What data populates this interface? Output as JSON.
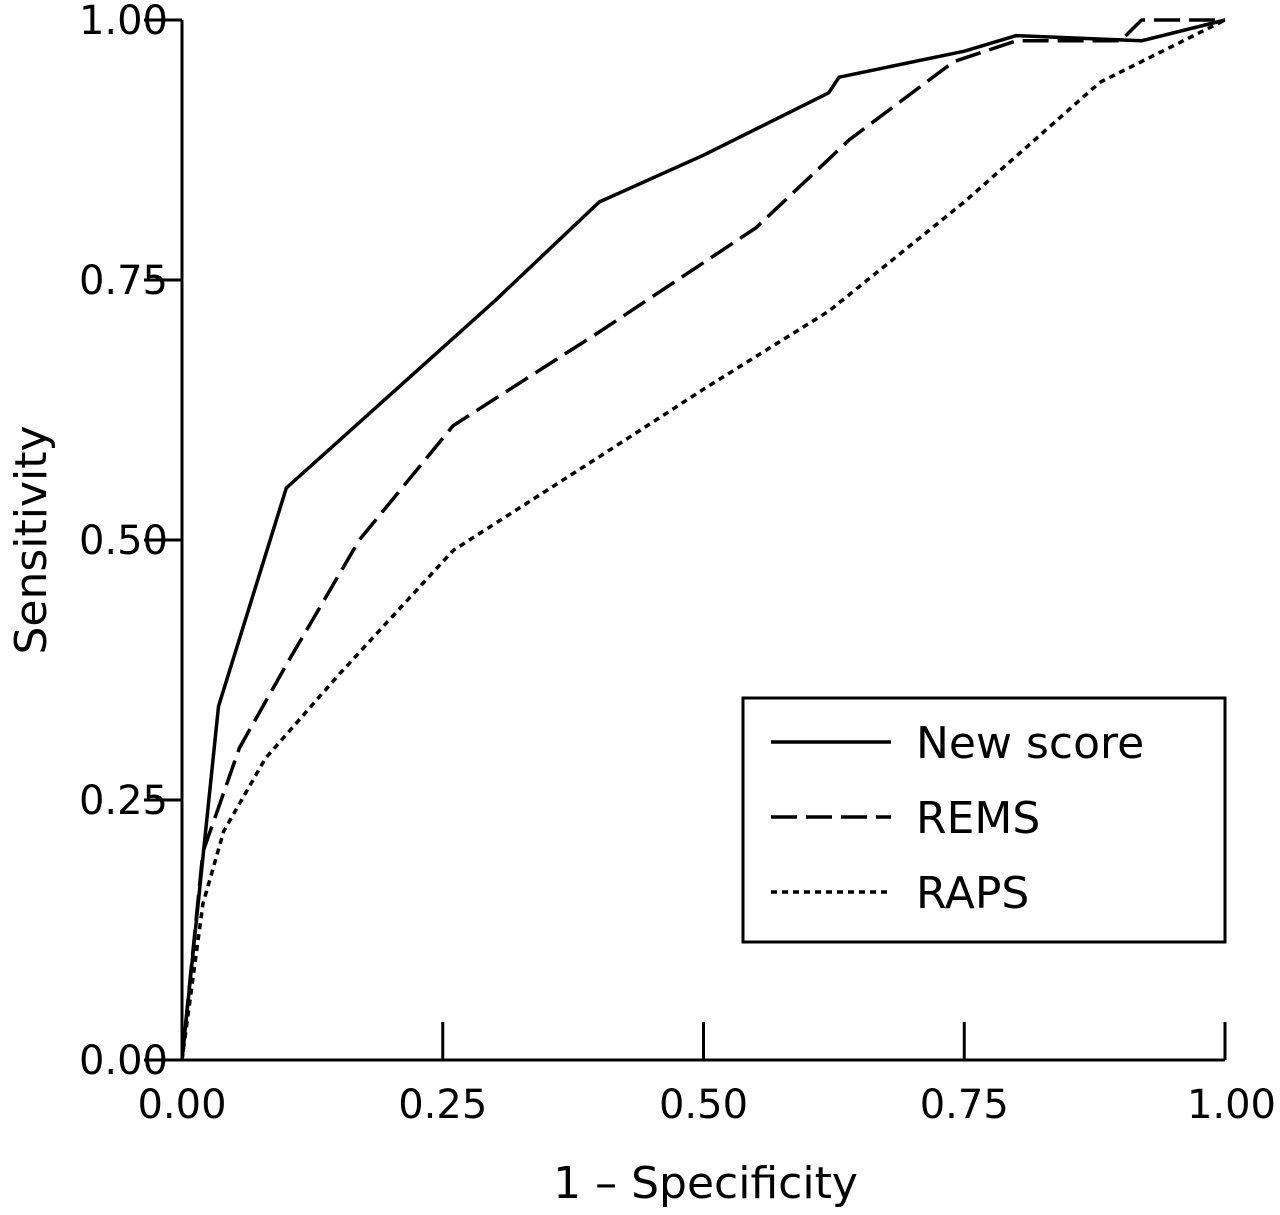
{
  "chart_data": {
    "type": "line",
    "xlabel": "1 – Specificity",
    "ylabel": "Sensitivity",
    "xlim": [
      0,
      1
    ],
    "ylim": [
      0,
      1
    ],
    "xticks": [
      "0.00",
      "0.25",
      "0.50",
      "0.75",
      "1.00"
    ],
    "yticks": [
      "0.00",
      "0.25",
      "0.50",
      "0.75",
      "1.00"
    ],
    "grid": false,
    "legend_position": "bottom-right",
    "series": [
      {
        "name": "New score",
        "style": "solid",
        "x": [
          0,
          0.035,
          0.1,
          0.2,
          0.3,
          0.4,
          0.5,
          0.62,
          0.63,
          0.75,
          0.8,
          0.92,
          1.0
        ],
        "y": [
          0,
          0.34,
          0.55,
          0.64,
          0.73,
          0.825,
          0.87,
          0.93,
          0.945,
          0.97,
          0.985,
          0.98,
          1.0
        ]
      },
      {
        "name": "REMS",
        "style": "dashed",
        "x": [
          0,
          0.02,
          0.055,
          0.1,
          0.17,
          0.26,
          0.4,
          0.55,
          0.64,
          0.74,
          0.8,
          0.9,
          0.92,
          1.0
        ],
        "y": [
          0,
          0.2,
          0.3,
          0.38,
          0.5,
          0.61,
          0.7,
          0.8,
          0.885,
          0.96,
          0.98,
          0.98,
          1.0,
          1.0
        ]
      },
      {
        "name": "RAPS",
        "style": "dotted",
        "x": [
          0,
          0.02,
          0.04,
          0.08,
          0.15,
          0.26,
          0.4,
          0.5,
          0.62,
          0.75,
          0.88,
          1.0
        ],
        "y": [
          0,
          0.15,
          0.22,
          0.29,
          0.37,
          0.49,
          0.58,
          0.645,
          0.72,
          0.825,
          0.94,
          1.0
        ]
      }
    ]
  }
}
